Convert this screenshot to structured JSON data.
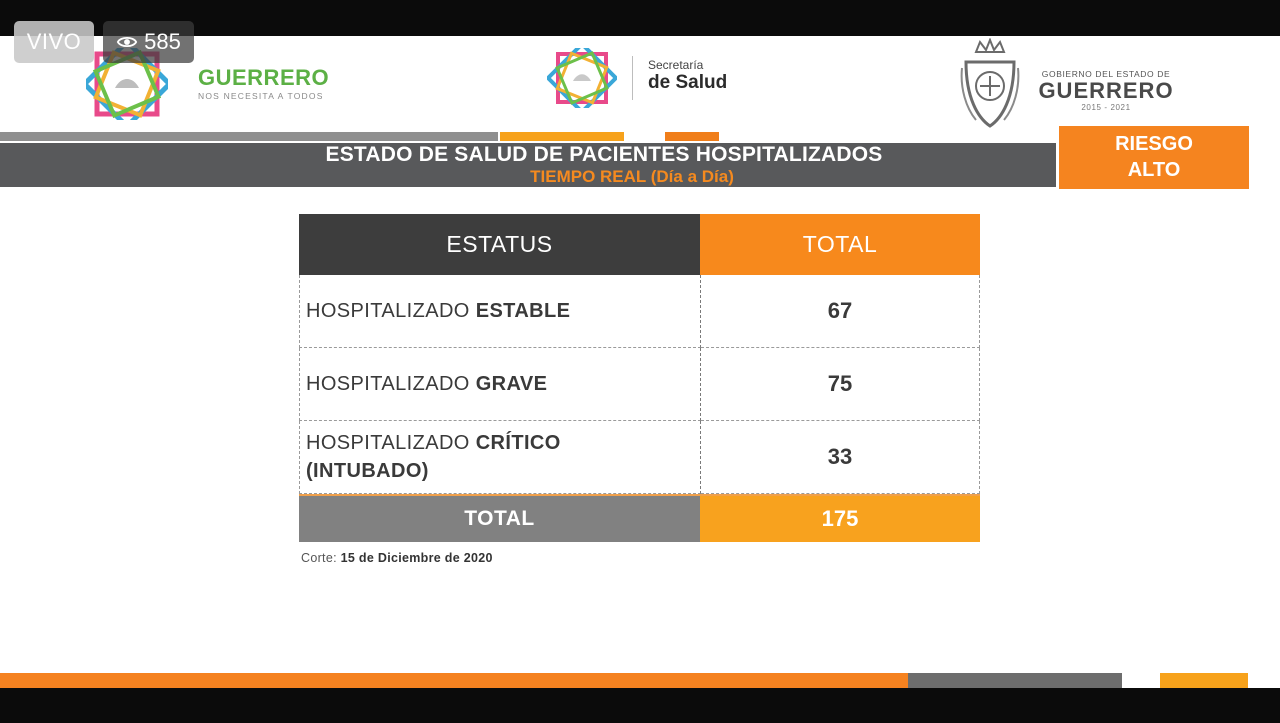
{
  "overlay": {
    "live_label": "VIVO",
    "viewer_count": "585",
    "viewer_icon": "eye-icon"
  },
  "header": {
    "guerrero_brand": {
      "name": "GUERRERO",
      "tagline": "NOS NECESITA A TODOS",
      "logo_icon": "star-emblem-icon"
    },
    "secretaria": {
      "line1": "Secretaría",
      "line2": "de Salud",
      "logo_icon": "star-emblem-icon"
    },
    "gobierno": {
      "line1": "GOBIERNO DEL ESTADO DE",
      "line2": "GUERRERO",
      "line3": "2015 - 2021",
      "logo_icon": "coat-of-arms-icon"
    }
  },
  "title": {
    "main": "ESTADO DE SALUD DE PACIENTES HOSPITALIZADOS",
    "subtitle": "TIEMPO REAL (Día a Día)",
    "risk_line1": "RIESGO",
    "risk_line2": "ALTO"
  },
  "table": {
    "headers": {
      "status": "ESTATUS",
      "total": "TOTAL"
    },
    "rows": [
      {
        "label_prefix": "HOSPITALIZADO ",
        "label_bold": "ESTABLE",
        "label_bold2": "",
        "value": "67"
      },
      {
        "label_prefix": "HOSPITALIZADO ",
        "label_bold": "GRAVE",
        "label_bold2": "",
        "value": "75"
      },
      {
        "label_prefix": "HOSPITALIZADO ",
        "label_bold": "CRÍTICO",
        "label_bold2": "(INTUBADO)",
        "value": "33"
      }
    ],
    "total_label": "TOTAL",
    "total_value": "175"
  },
  "footer": {
    "cutoff_label": "Corte:",
    "cutoff_date": "15 de Diciembre de 2020"
  },
  "colors": {
    "orange": "#f58220",
    "dark_gray": "#3d3d3d",
    "green": "#5cb045"
  }
}
